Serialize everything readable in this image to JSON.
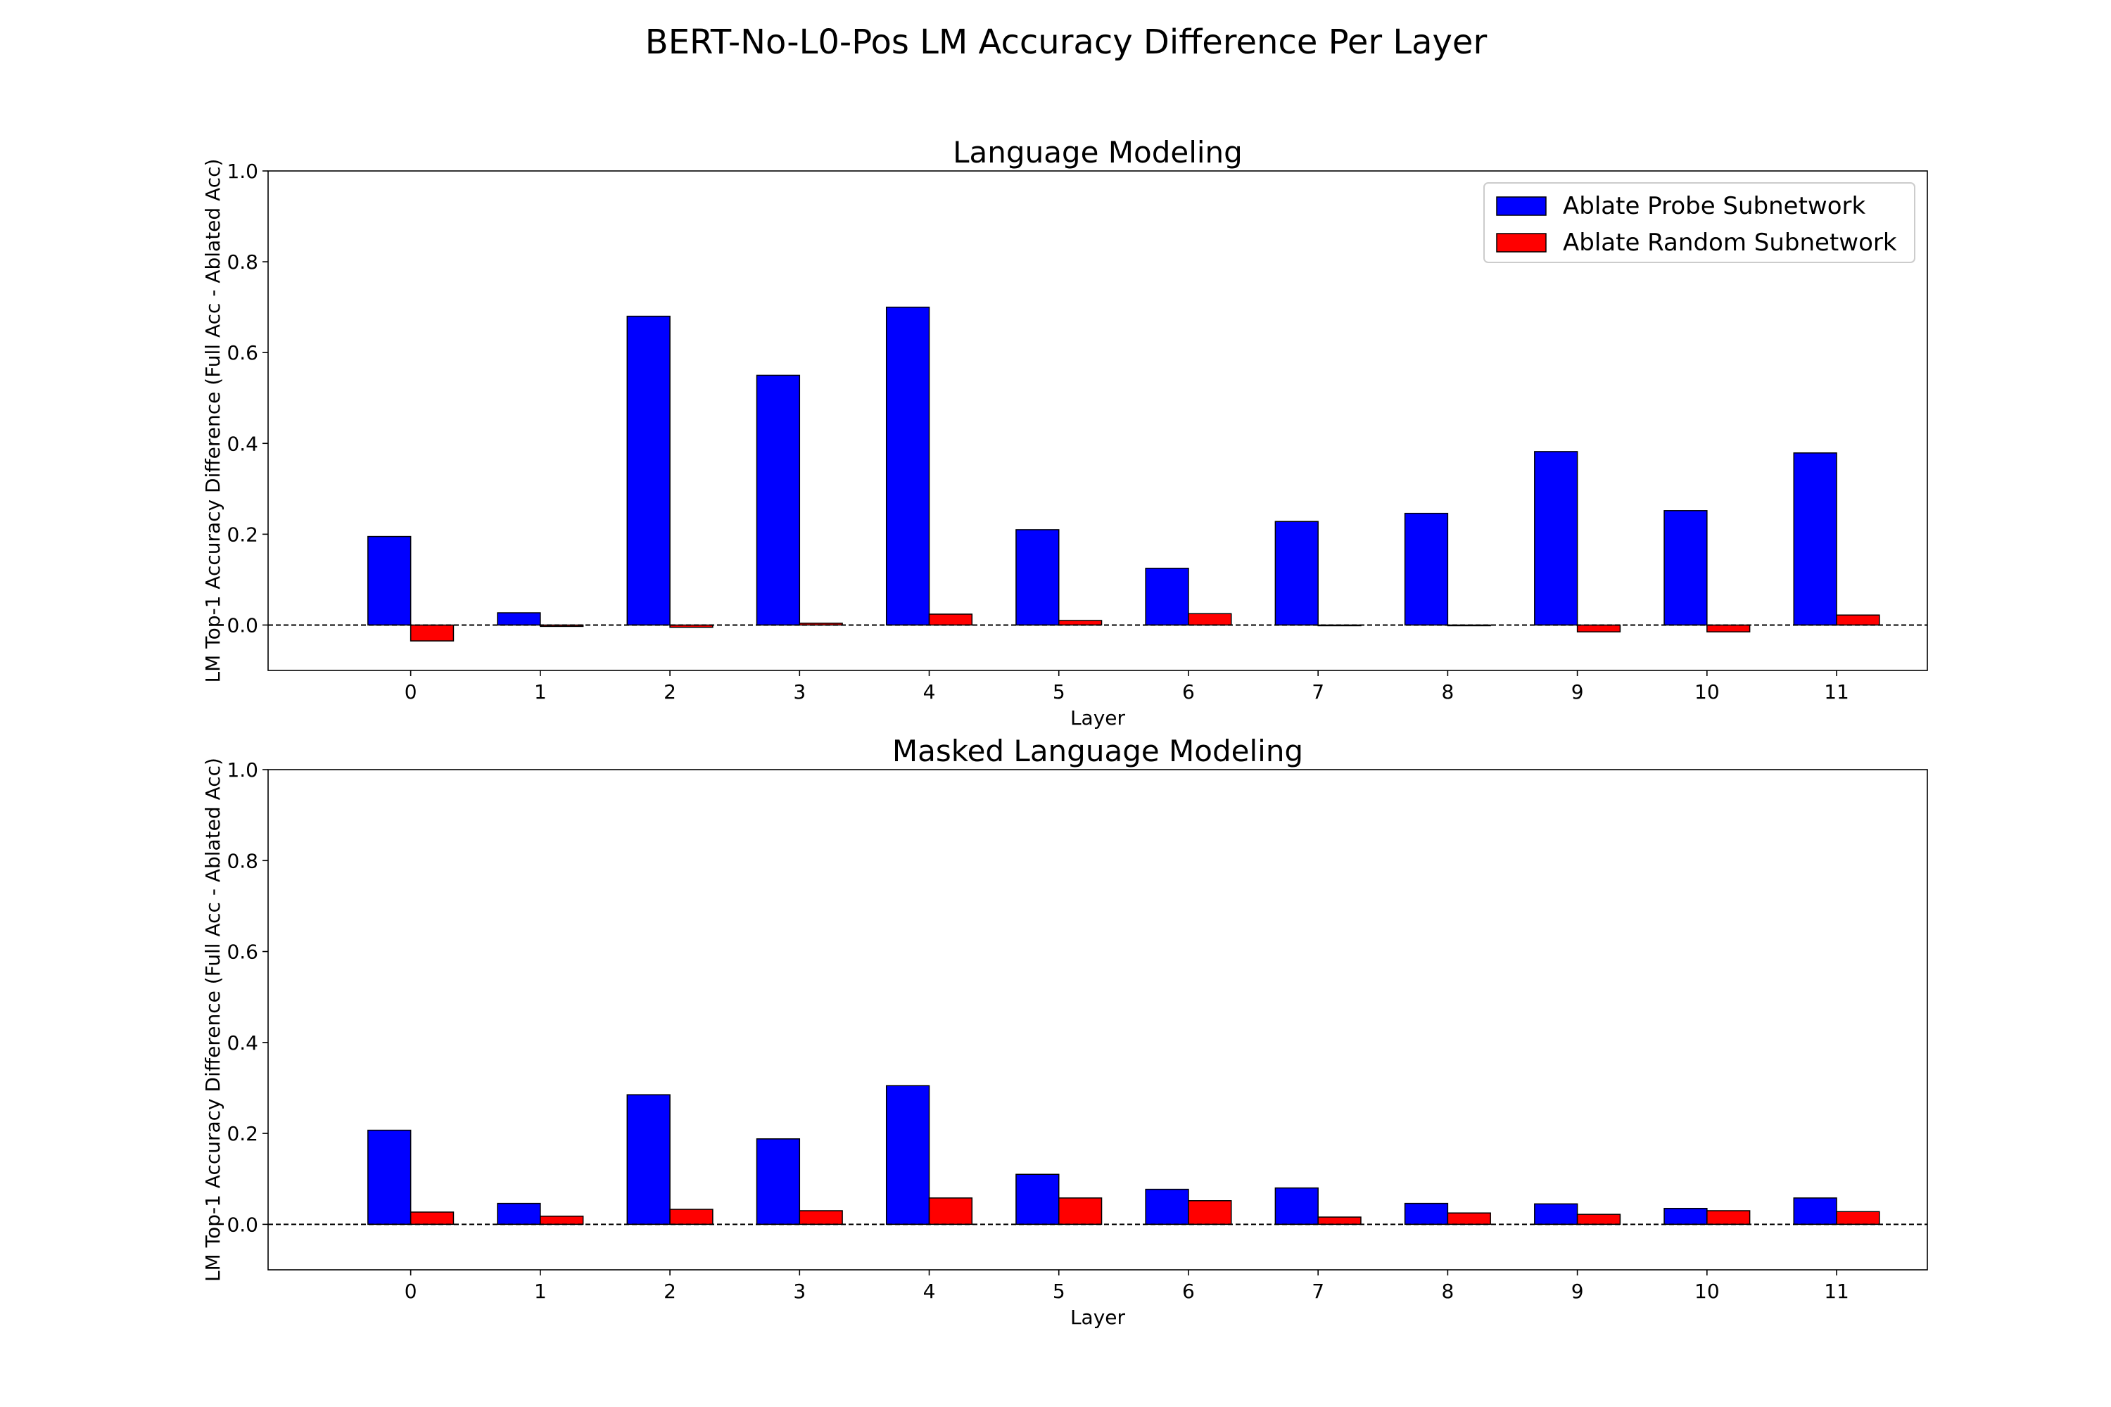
{
  "figure": {
    "title": "BERT-No-L0-Pos LM Accuracy Difference Per Layer"
  },
  "colors": {
    "probe": "#0000ff",
    "random": "#ff0000",
    "edge": "#000000"
  },
  "chart_data": [
    {
      "type": "bar",
      "title": "Language Modeling",
      "xlabel": "Layer",
      "ylabel": "LM Top-1 Accuracy Difference (Full Acc - Ablated Acc)",
      "ylim": [
        -0.1,
        1.0
      ],
      "yticks": [
        "0.0",
        "0.2",
        "0.4",
        "0.6",
        "0.8",
        "1.0"
      ],
      "categories": [
        "0",
        "1",
        "2",
        "3",
        "4",
        "5",
        "6",
        "7",
        "8",
        "9",
        "10",
        "11"
      ],
      "legend": "top-right",
      "series": [
        {
          "name": "Ablate Probe Subnetwork",
          "values": [
            0.195,
            0.027,
            0.68,
            0.55,
            0.7,
            0.21,
            0.125,
            0.228,
            0.246,
            0.382,
            0.252,
            0.379
          ]
        },
        {
          "name": "Ablate Random Subnetwork",
          "values": [
            -0.035,
            -0.003,
            -0.005,
            0.004,
            0.024,
            0.01,
            0.025,
            -0.001,
            -0.001,
            -0.015,
            -0.015,
            0.022
          ]
        }
      ]
    },
    {
      "type": "bar",
      "title": "Masked Language Modeling",
      "xlabel": "Layer",
      "ylabel": "LM Top-1 Accuracy Difference (Full Acc - Ablated Acc)",
      "ylim": [
        -0.1,
        1.0
      ],
      "yticks": [
        "0.0",
        "0.2",
        "0.4",
        "0.6",
        "0.8",
        "1.0"
      ],
      "categories": [
        "0",
        "1",
        "2",
        "3",
        "4",
        "5",
        "6",
        "7",
        "8",
        "9",
        "10",
        "11"
      ],
      "legend": "none",
      "series": [
        {
          "name": "Ablate Probe Subnetwork",
          "values": [
            0.207,
            0.046,
            0.285,
            0.188,
            0.305,
            0.11,
            0.077,
            0.08,
            0.046,
            0.045,
            0.035,
            0.058
          ]
        },
        {
          "name": "Ablate Random Subnetwork",
          "values": [
            0.027,
            0.018,
            0.033,
            0.03,
            0.058,
            0.058,
            0.052,
            0.016,
            0.025,
            0.022,
            0.03,
            0.028
          ]
        }
      ]
    }
  ]
}
